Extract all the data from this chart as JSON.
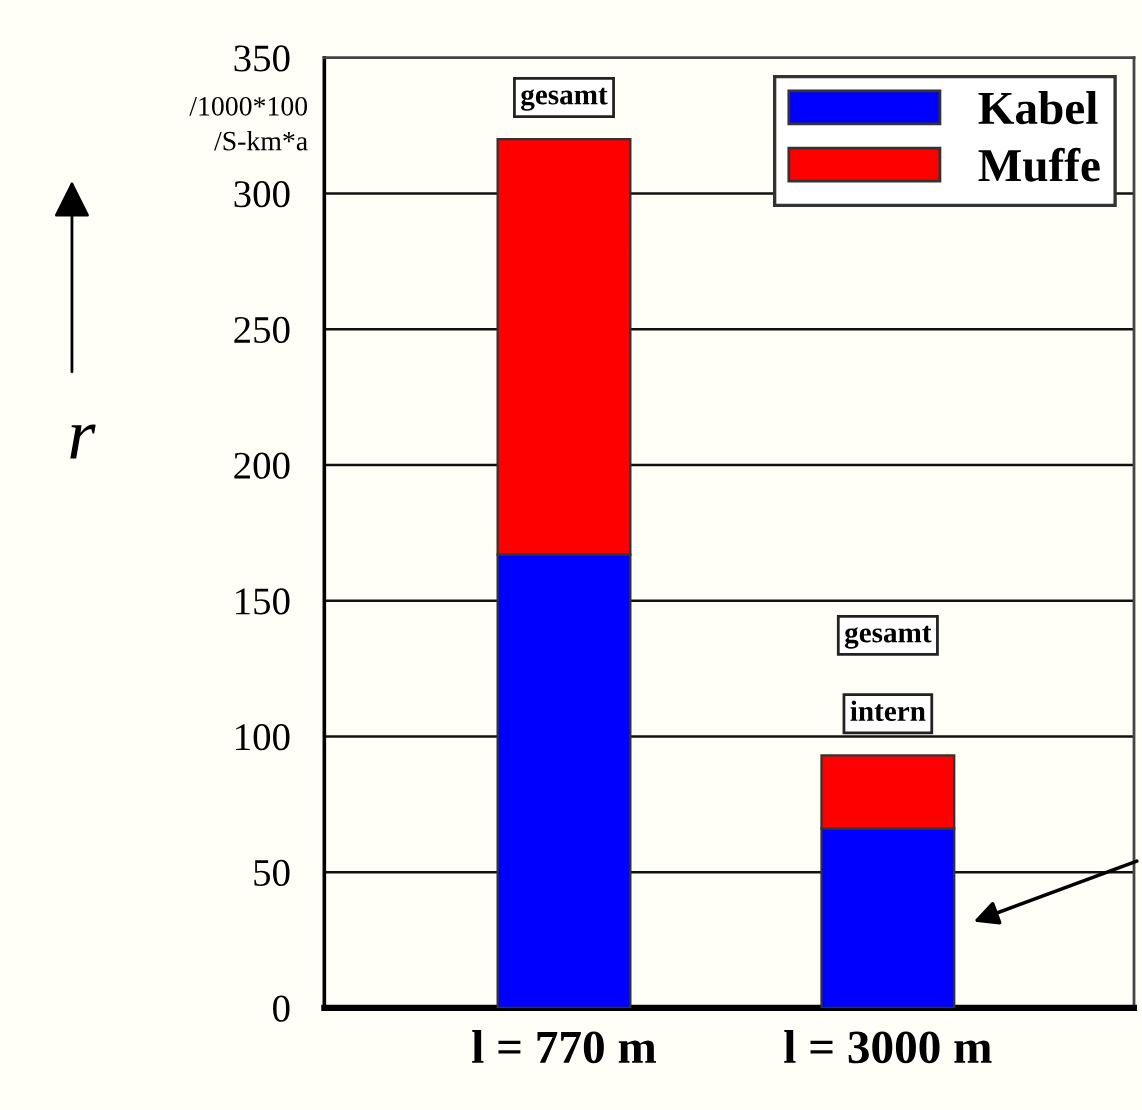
{
  "chart_data": {
    "type": "bar",
    "stacked": true,
    "categories": [
      "l = 770 m",
      "l = 3000 m"
    ],
    "series": [
      {
        "name": "Kabel",
        "color": "#0000ff",
        "values": [
          167,
          66
        ]
      },
      {
        "name": "Muffe",
        "color": "#ff0000",
        "values": [
          153,
          27
        ]
      }
    ],
    "ylabel": "r",
    "ylim": [
      0,
      350
    ],
    "yticks": [
      0,
      50,
      100,
      150,
      200,
      250,
      300,
      350
    ],
    "grid": "y",
    "legend": "top right",
    "annotations": [
      "/1000*100\n/S-km*a",
      {
        "text": "gesamt",
        "x": "l = 770 m",
        "y": 320
      },
      "gesamt",
      {
        "text": "intern",
        "x": "l = 3000 m",
        "y": 93
      }
    ]
  }
}
